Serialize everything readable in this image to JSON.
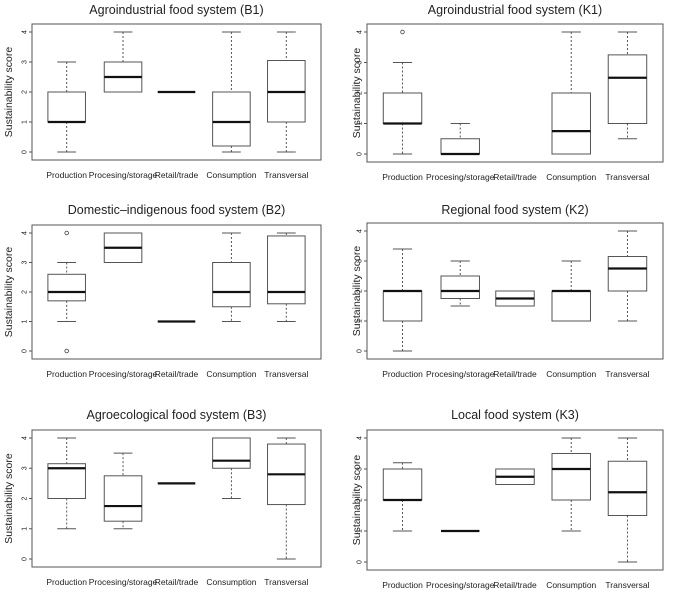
{
  "figure": {
    "caption": "Sustainability score boxplots by food system component"
  },
  "chart_data": [
    {
      "type": "boxplot",
      "title": "Agroindustrial food system (B1)",
      "ylabel": "Sustainability score",
      "xlabel": "",
      "ylim": [
        0,
        4
      ],
      "yticks": [
        "0",
        "1",
        "2",
        "3",
        "4"
      ],
      "categories": [
        "Production",
        "Procesing/storage",
        "Retail/trade",
        "Consumption",
        "Transversal"
      ],
      "boxes": [
        {
          "min": 0,
          "q1": 1,
          "median": 1,
          "q3": 2,
          "max": 3,
          "outliers": []
        },
        {
          "min": 2,
          "q1": 2,
          "median": 2.5,
          "q3": 3,
          "max": 4,
          "outliers": []
        },
        {
          "min": 2,
          "q1": 2,
          "median": 2,
          "q3": 2,
          "max": 2,
          "outliers": []
        },
        {
          "min": 0,
          "q1": 0.2,
          "median": 1,
          "q3": 2,
          "max": 4,
          "outliers": []
        },
        {
          "min": 0,
          "q1": 1,
          "median": 2,
          "q3": 3.05,
          "max": 4,
          "outliers": []
        }
      ]
    },
    {
      "type": "boxplot",
      "title": "Agroindustrial food system (K1)",
      "ylabel": "Sustainability score",
      "xlabel": "",
      "ylim": [
        0,
        4
      ],
      "yticks": [
        "0",
        "1",
        "2",
        "3",
        "4"
      ],
      "categories": [
        "Production",
        "Procesing/storage",
        "Retail/trade",
        "Consumption",
        "Transversal"
      ],
      "boxes": [
        {
          "min": 0,
          "q1": 1,
          "median": 1,
          "q3": 2,
          "max": 3,
          "outliers": [
            4
          ]
        },
        {
          "min": 0,
          "q1": 0,
          "median": 0,
          "q3": 0.5,
          "max": 1,
          "outliers": []
        },
        null,
        {
          "min": 0,
          "q1": 0,
          "median": 0.75,
          "q3": 2,
          "max": 4,
          "outliers": []
        },
        {
          "min": 0.5,
          "q1": 1,
          "median": 2.5,
          "q3": 3.25,
          "max": 4,
          "outliers": []
        }
      ]
    },
    {
      "type": "boxplot",
      "title": "Domestic–indigenous food system (B2)",
      "ylabel": "Sustainability score",
      "xlabel": "",
      "ylim": [
        0,
        4
      ],
      "yticks": [
        "0",
        "1",
        "2",
        "3",
        "4"
      ],
      "categories": [
        "Production",
        "Procesing/storage",
        "Retail/trade",
        "Consumption",
        "Transversal"
      ],
      "boxes": [
        {
          "min": 1,
          "q1": 1.7,
          "median": 2,
          "q3": 2.6,
          "max": 3,
          "outliers": [
            4,
            0
          ]
        },
        {
          "min": 3,
          "q1": 3,
          "median": 3.5,
          "q3": 4,
          "max": 4,
          "outliers": []
        },
        {
          "min": 1,
          "q1": 1,
          "median": 1,
          "q3": 1,
          "max": 1,
          "outliers": []
        },
        {
          "min": 1,
          "q1": 1.5,
          "median": 2,
          "q3": 3,
          "max": 4,
          "outliers": []
        },
        {
          "min": 1,
          "q1": 1.6,
          "median": 2,
          "q3": 3.9,
          "max": 4,
          "outliers": []
        }
      ]
    },
    {
      "type": "boxplot",
      "title": "Regional food system (K2)",
      "ylabel": "Sustainability score",
      "xlabel": "",
      "ylim": [
        0,
        4
      ],
      "yticks": [
        "0",
        "1",
        "2",
        "3",
        "4"
      ],
      "categories": [
        "Production",
        "Procesing/storage",
        "Retail/trade",
        "Consumption",
        "Transversal"
      ],
      "boxes": [
        {
          "min": 0,
          "q1": 1,
          "median": 2,
          "q3": 2,
          "max": 3.4,
          "outliers": []
        },
        {
          "min": 1.5,
          "q1": 1.75,
          "median": 2,
          "q3": 2.5,
          "max": 3,
          "outliers": []
        },
        {
          "min": 1.5,
          "q1": 1.5,
          "median": 1.75,
          "q3": 2,
          "max": 2,
          "outliers": []
        },
        {
          "min": 1,
          "q1": 1,
          "median": 2,
          "q3": 2,
          "max": 3,
          "outliers": []
        },
        {
          "min": 1,
          "q1": 2,
          "median": 2.75,
          "q3": 3.15,
          "max": 4,
          "outliers": []
        }
      ]
    },
    {
      "type": "boxplot",
      "title": "Agroecological food system (B3)",
      "ylabel": "Sustainability score",
      "xlabel": "",
      "ylim": [
        0,
        4
      ],
      "yticks": [
        "0",
        "1",
        "2",
        "3",
        "4"
      ],
      "categories": [
        "Production",
        "Procesing/storage",
        "Retail/trade",
        "Consumption",
        "Transversal"
      ],
      "boxes": [
        {
          "min": 1,
          "q1": 2,
          "median": 3,
          "q3": 3.15,
          "max": 4,
          "outliers": []
        },
        {
          "min": 1,
          "q1": 1.25,
          "median": 1.75,
          "q3": 2.75,
          "max": 3.5,
          "outliers": []
        },
        {
          "min": 2.5,
          "q1": 2.5,
          "median": 2.5,
          "q3": 2.5,
          "max": 2.5,
          "outliers": []
        },
        {
          "min": 2,
          "q1": 3,
          "median": 3.25,
          "q3": 4,
          "max": 4,
          "outliers": []
        },
        {
          "min": 0,
          "q1": 1.8,
          "median": 2.8,
          "q3": 3.8,
          "max": 4,
          "outliers": []
        }
      ]
    },
    {
      "type": "boxplot",
      "title": "Local food system (K3)",
      "ylabel": "Sustainability score",
      "xlabel": "",
      "ylim": [
        0,
        4
      ],
      "yticks": [
        "0",
        "1",
        "2",
        "3",
        "4"
      ],
      "categories": [
        "Production",
        "Procesing/storage",
        "Retail/trade",
        "Consumption",
        "Transversal"
      ],
      "boxes": [
        {
          "min": 1,
          "q1": 2,
          "median": 2,
          "q3": 3,
          "max": 3.2,
          "outliers": []
        },
        {
          "min": 1,
          "q1": 1,
          "median": 1,
          "q3": 1,
          "max": 1,
          "outliers": []
        },
        {
          "min": 2.5,
          "q1": 2.5,
          "median": 2.75,
          "q3": 3,
          "max": 3,
          "outliers": []
        },
        {
          "min": 1,
          "q1": 2,
          "median": 3,
          "q3": 3.5,
          "max": 4,
          "outliers": []
        },
        {
          "min": 0,
          "q1": 1.5,
          "median": 2.25,
          "q3": 3.25,
          "max": 4,
          "outliers": []
        }
      ]
    }
  ]
}
